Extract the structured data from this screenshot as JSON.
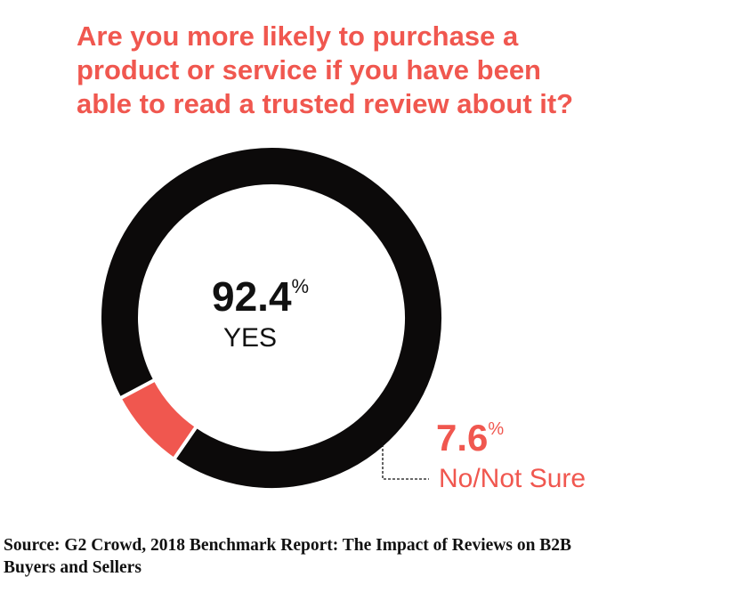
{
  "title_lines": [
    "Are you more likely to purchase a",
    "product or service if you have been",
    "able to read a trusted review about it?"
  ],
  "source_lines": [
    "Source: G2 Crowd, 2018 Benchmark Report: The Impact of Reviews on B2B",
    "Buyers and Sellers"
  ],
  "chart_data": {
    "type": "pie",
    "style": "donut",
    "slices": [
      {
        "label": "YES",
        "value": 92.4,
        "value_text": "92.4",
        "unit": "%",
        "color": "#0c0a0a"
      },
      {
        "label": "No/Not Sure",
        "value": 7.6,
        "value_text": "7.6",
        "unit": "%",
        "color": "#f0574f"
      }
    ],
    "title": "Are you more likely to purchase a product or service if you have been able to read a trusted review about it?"
  }
}
